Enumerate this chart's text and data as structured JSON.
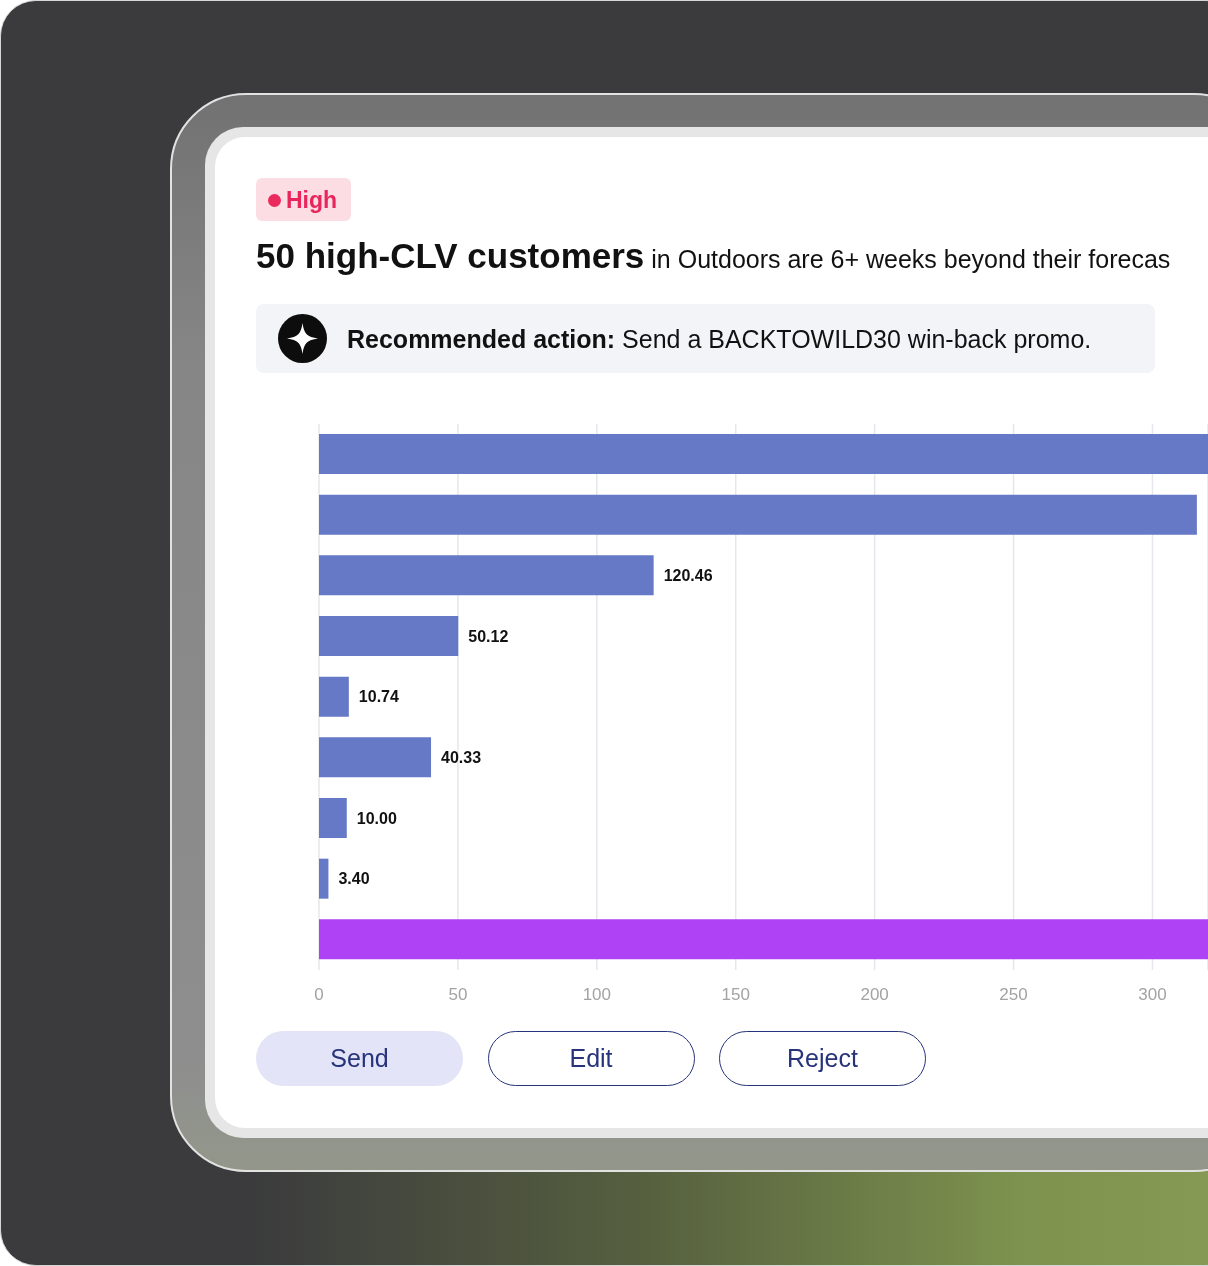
{
  "chart_data": {
    "type": "bar",
    "orientation": "horizontal",
    "title": "50 high-CLV customers",
    "subtitle": "in Outdoors are 6+ weeks beyond their forecas",
    "annotations": [
      "High",
      "Recommended action:",
      "Send a BACKTOWILD30 win-back promo.",
      "Send",
      "Edit",
      "Reject"
    ],
    "categories": [
      null,
      null,
      null,
      null,
      null,
      null,
      null,
      null,
      null
    ],
    "values": [
      320,
      316,
      120.46,
      50.12,
      10.74,
      40.33,
      10.0,
      3.4,
      320
    ],
    "value_labels": [
      null,
      null,
      "120.46",
      "50.12",
      "10.74",
      "40.33",
      "10.00",
      "3.40",
      null
    ],
    "colors": [
      "#6679c6",
      "#6679c6",
      "#6679c6",
      "#6679c6",
      "#6679c6",
      "#6679c6",
      "#6679c6",
      "#6679c6",
      "#ae42f4"
    ],
    "xlim": [
      0,
      320
    ],
    "xticks": [
      0,
      50,
      100,
      150,
      200,
      250,
      300
    ],
    "grid": "x",
    "tick_labels": "x"
  }
}
